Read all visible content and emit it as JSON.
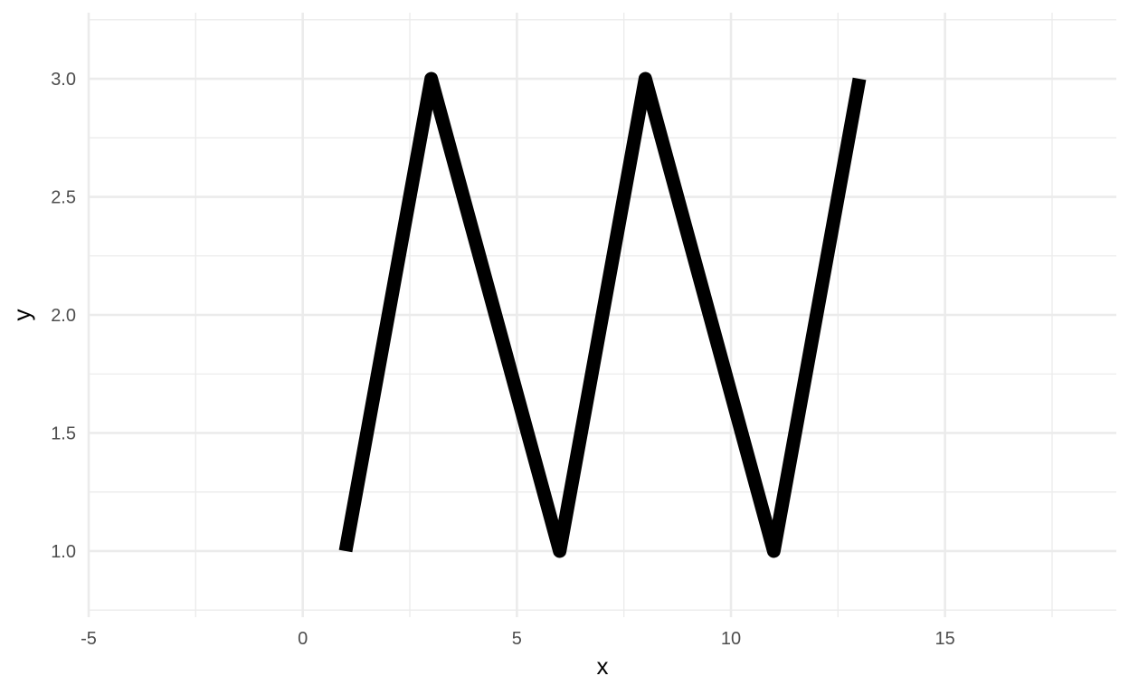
{
  "chart_data": {
    "type": "line",
    "title": "",
    "xlabel": "x",
    "ylabel": "y",
    "xlim": [
      -5,
      19
    ],
    "ylim": [
      0.72,
      3.28
    ],
    "x_ticks": [
      -5,
      0,
      5,
      10,
      15
    ],
    "x_tick_labels": [
      "-5",
      "0",
      "5",
      "10",
      "15"
    ],
    "x_minor_ticks": [
      -2.5,
      2.5,
      7.5,
      12.5,
      17.5
    ],
    "y_ticks": [
      1.0,
      1.5,
      2.0,
      2.5,
      3.0
    ],
    "y_tick_labels": [
      "1.0",
      "1.5",
      "2.0",
      "2.5",
      "3.0"
    ],
    "y_minor_ticks": [
      0.75,
      1.25,
      1.75,
      2.25,
      2.75,
      3.25
    ],
    "grid": true,
    "legend": "none",
    "series": [
      {
        "color": "#000000",
        "x": [
          1,
          3,
          6,
          8,
          11,
          13
        ],
        "y": [
          1,
          3,
          1,
          3,
          1,
          3
        ]
      }
    ]
  }
}
